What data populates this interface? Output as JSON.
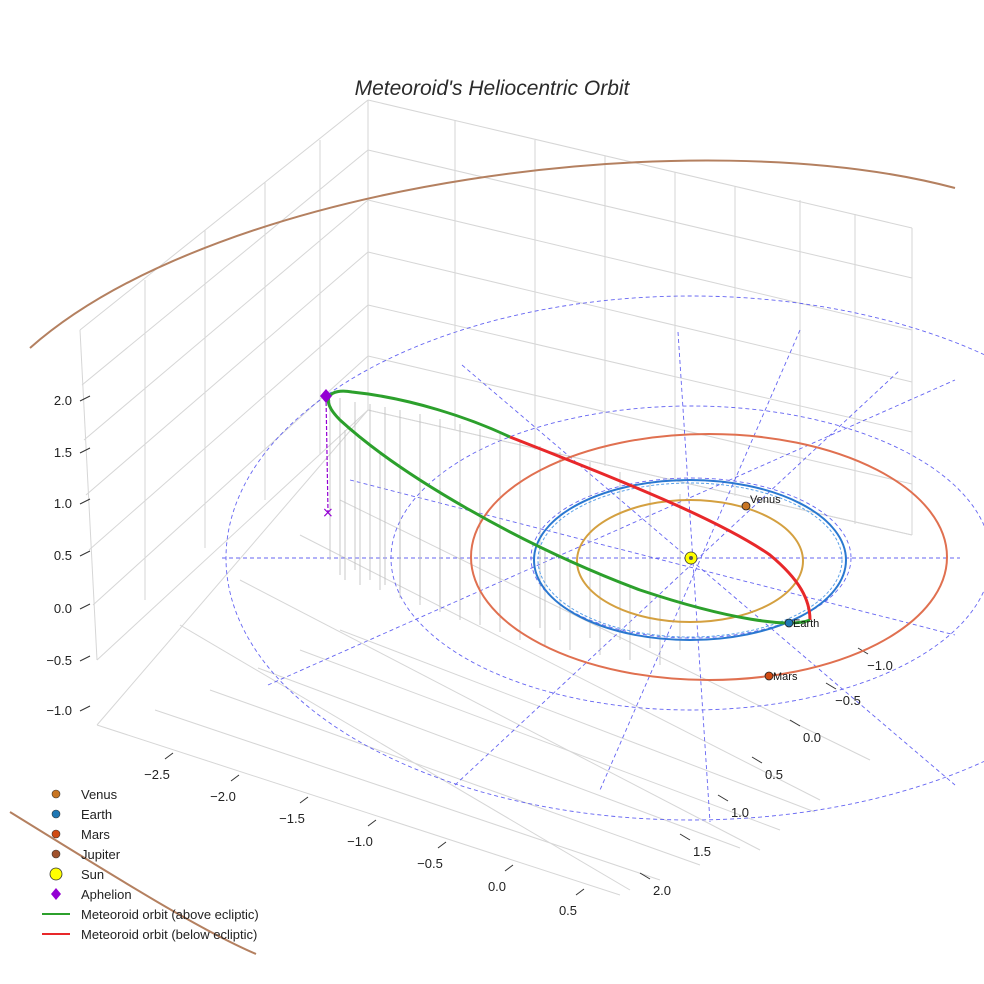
{
  "chart_data": {
    "type": "scatter-3d",
    "title": "Meteoroid's Heliocentric Orbit",
    "xlabel": "",
    "ylabel": "",
    "zlabel": "",
    "x_ticks": [
      "−2.5",
      "−2.0",
      "−1.5",
      "−1.0",
      "−0.5",
      "0.0",
      "0.5"
    ],
    "y_ticks": [
      "−1.0",
      "−0.5",
      "0.0",
      "0.5",
      "1.0",
      "1.5",
      "2.0"
    ],
    "z_ticks": [
      "−1.0",
      "−0.5",
      "0.0",
      "0.5",
      "1.0",
      "1.5",
      "2.0"
    ],
    "xlim": [
      -2.9,
      0.6
    ],
    "ylim": [
      -1.3,
      2.2
    ],
    "zlim": [
      -1.1,
      2.2
    ],
    "planet_orbits": [
      {
        "name": "Venus",
        "radius_au": 0.72,
        "color": "#d4a040"
      },
      {
        "name": "Earth",
        "radius_au": 1.0,
        "color": "#2a78d0"
      },
      {
        "name": "Mars",
        "radius_au": 1.52,
        "color": "#e07050"
      },
      {
        "name": "Jupiter",
        "radius_au": 5.2,
        "color": "#b48060"
      }
    ],
    "planets": [
      {
        "name": "Venus",
        "label": "Venus",
        "x": -0.3,
        "y": -0.52,
        "z": 0.0,
        "color": "#c87522"
      },
      {
        "name": "Earth",
        "label": "Earth",
        "x": 0.3,
        "y": 0.95,
        "z": 0.0,
        "color": "#1f77b4"
      },
      {
        "name": "Mars",
        "label": "Mars",
        "x": 0.92,
        "y": 1.21,
        "z": 0.0,
        "color": "#d04a12"
      }
    ],
    "sun": {
      "name": "Sun",
      "x": 0.0,
      "y": 0.0,
      "z": 0.0,
      "color": "#ffff00"
    },
    "aphelion": {
      "name": "Aphelion",
      "x": -2.9,
      "y": -0.55,
      "z": 2.0,
      "color": "#9400d3"
    },
    "meteoroid_orbit": {
      "semi_major_axis_au": 1.96,
      "eccentricity": 0.48,
      "inclination_note": "tilted; aphelion about 2.0 AU above ecliptic",
      "above_color": "#2ca02c",
      "below_color": "#e8282a"
    },
    "legend": [
      {
        "label": "Venus",
        "marker": "circle",
        "color": "#c87522"
      },
      {
        "label": "Earth",
        "marker": "circle",
        "color": "#1f77b4"
      },
      {
        "label": "Mars",
        "marker": "circle",
        "color": "#d04a12"
      },
      {
        "label": "Jupiter",
        "marker": "circle",
        "color": "#a0522d"
      },
      {
        "label": "Sun",
        "marker": "circle-large",
        "color": "#ffff00"
      },
      {
        "label": "Aphelion",
        "marker": "diamond",
        "color": "#9400d3"
      },
      {
        "label": "Meteoroid orbit (above ecliptic)",
        "marker": "line",
        "color": "#2ca02c"
      },
      {
        "label": "Meteoroid orbit (below ecliptic)",
        "marker": "line",
        "color": "#e8282a"
      }
    ]
  }
}
